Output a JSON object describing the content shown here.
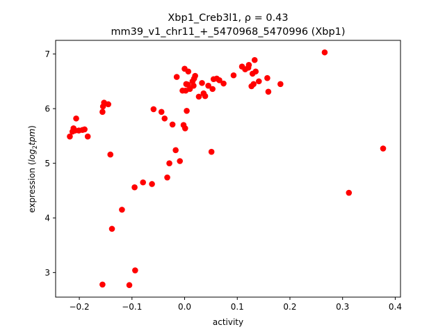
{
  "chart_data": {
    "type": "scatter",
    "title_line1": "Xbp1_Creb3l1, ρ = 0.43",
    "title_line2": "mm39_v1_chr11_+_5470968_5470996 (Xbp1)",
    "xlabel": "activity",
    "ylabel_prefix": "expression (",
    "ylabel_math": "log",
    "ylabel_sub": "2",
    "ylabel_suffix": "tpm",
    "ylabel_close": ")",
    "xlim": [
      -0.245,
      0.41
    ],
    "ylim": [
      2.55,
      7.25
    ],
    "xticks": [
      -0.2,
      -0.1,
      0.0,
      0.1,
      0.2,
      0.3,
      0.4
    ],
    "xtick_labels": [
      "−0.2",
      "−0.1",
      "0.0",
      "0.1",
      "0.2",
      "0.3",
      "0.4"
    ],
    "yticks": [
      3,
      4,
      5,
      6,
      7
    ],
    "ytick_labels": [
      "3",
      "4",
      "5",
      "6",
      "7"
    ],
    "marker_color": "#ff0000",
    "grid": false,
    "points": [
      {
        "x": -0.218,
        "y": 5.49
      },
      {
        "x": -0.213,
        "y": 5.58
      },
      {
        "x": -0.211,
        "y": 5.64
      },
      {
        "x": -0.208,
        "y": 5.6
      },
      {
        "x": -0.206,
        "y": 5.82
      },
      {
        "x": -0.201,
        "y": 5.6
      },
      {
        "x": -0.194,
        "y": 5.61
      },
      {
        "x": -0.19,
        "y": 5.62
      },
      {
        "x": -0.184,
        "y": 5.49
      },
      {
        "x": -0.156,
        "y": 5.94
      },
      {
        "x": -0.155,
        "y": 6.04
      },
      {
        "x": -0.153,
        "y": 6.11
      },
      {
        "x": -0.145,
        "y": 6.08
      },
      {
        "x": -0.141,
        "y": 5.16
      },
      {
        "x": -0.138,
        "y": 3.8
      },
      {
        "x": -0.156,
        "y": 2.78
      },
      {
        "x": -0.119,
        "y": 4.15
      },
      {
        "x": -0.105,
        "y": 2.77
      },
      {
        "x": -0.094,
        "y": 3.04
      },
      {
        "x": -0.095,
        "y": 4.56
      },
      {
        "x": -0.079,
        "y": 4.65
      },
      {
        "x": -0.062,
        "y": 4.62
      },
      {
        "x": -0.059,
        "y": 5.99
      },
      {
        "x": -0.044,
        "y": 5.94
      },
      {
        "x": -0.038,
        "y": 5.82
      },
      {
        "x": -0.033,
        "y": 4.74
      },
      {
        "x": -0.029,
        "y": 5.0
      },
      {
        "x": -0.023,
        "y": 5.71
      },
      {
        "x": -0.017,
        "y": 5.24
      },
      {
        "x": -0.015,
        "y": 6.58
      },
      {
        "x": -0.009,
        "y": 5.04
      },
      {
        "x": -0.004,
        "y": 6.33
      },
      {
        "x": -0.002,
        "y": 5.7
      },
      {
        "x": 0.0,
        "y": 6.73
      },
      {
        "x": 0.001,
        "y": 5.64
      },
      {
        "x": 0.002,
        "y": 6.33
      },
      {
        "x": 0.003,
        "y": 6.45
      },
      {
        "x": 0.004,
        "y": 5.96
      },
      {
        "x": 0.006,
        "y": 6.44
      },
      {
        "x": 0.007,
        "y": 6.68
      },
      {
        "x": 0.01,
        "y": 6.36
      },
      {
        "x": 0.015,
        "y": 6.5
      },
      {
        "x": 0.017,
        "y": 6.42
      },
      {
        "x": 0.018,
        "y": 6.55
      },
      {
        "x": 0.02,
        "y": 6.6
      },
      {
        "x": 0.027,
        "y": 6.22
      },
      {
        "x": 0.033,
        "y": 6.47
      },
      {
        "x": 0.036,
        "y": 6.28
      },
      {
        "x": 0.039,
        "y": 6.23
      },
      {
        "x": 0.045,
        "y": 6.42
      },
      {
        "x": 0.051,
        "y": 5.21
      },
      {
        "x": 0.053,
        "y": 6.36
      },
      {
        "x": 0.055,
        "y": 6.54
      },
      {
        "x": 0.061,
        "y": 6.55
      },
      {
        "x": 0.066,
        "y": 6.52
      },
      {
        "x": 0.074,
        "y": 6.46
      },
      {
        "x": 0.093,
        "y": 6.61
      },
      {
        "x": 0.109,
        "y": 6.77
      },
      {
        "x": 0.115,
        "y": 6.72
      },
      {
        "x": 0.121,
        "y": 6.75
      },
      {
        "x": 0.122,
        "y": 6.8
      },
      {
        "x": 0.127,
        "y": 6.41
      },
      {
        "x": 0.129,
        "y": 6.64
      },
      {
        "x": 0.131,
        "y": 6.45
      },
      {
        "x": 0.133,
        "y": 6.89
      },
      {
        "x": 0.135,
        "y": 6.68
      },
      {
        "x": 0.141,
        "y": 6.5
      },
      {
        "x": 0.157,
        "y": 6.56
      },
      {
        "x": 0.159,
        "y": 6.31
      },
      {
        "x": 0.182,
        "y": 6.45
      },
      {
        "x": 0.266,
        "y": 7.03
      },
      {
        "x": 0.312,
        "y": 4.46
      },
      {
        "x": 0.377,
        "y": 5.27
      }
    ]
  }
}
